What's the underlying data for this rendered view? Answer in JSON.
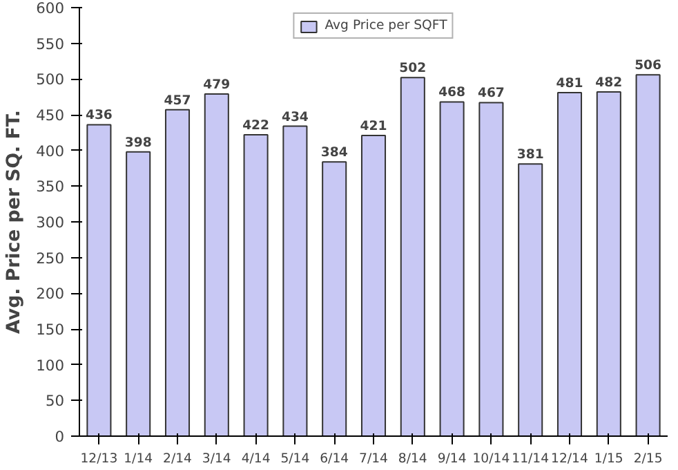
{
  "chart_data": {
    "type": "bar",
    "ylabel": "Avg. Price per SQ. FT.",
    "categories": [
      "12/13",
      "1/14",
      "2/14",
      "3/14",
      "4/14",
      "5/14",
      "6/14",
      "7/14",
      "8/14",
      "9/14",
      "10/14",
      "11/14",
      "12/14",
      "1/15",
      "2/15"
    ],
    "series": [
      {
        "name": "Avg Price per SQFT",
        "color": "#c8c8f4",
        "values": [
          436,
          398,
          457,
          479,
          422,
          434,
          384,
          421,
          502,
          468,
          467,
          381,
          481,
          482,
          506
        ]
      }
    ],
    "ylim": [
      0,
      600
    ],
    "yticks": [
      0,
      50,
      100,
      150,
      200,
      250,
      300,
      350,
      400,
      450,
      500,
      550,
      600
    ],
    "data_labels": true,
    "legend": "top",
    "grid": false
  }
}
